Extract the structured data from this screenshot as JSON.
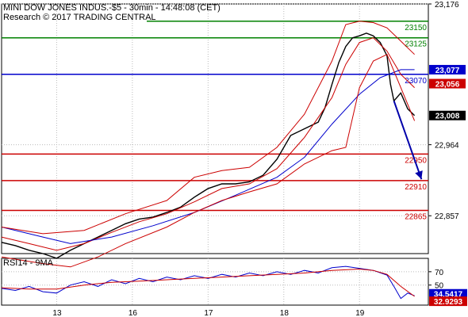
{
  "header": {
    "title": "MINI DOW JONES INDUS.-$5 - 30min - 14:48:08 (CET)",
    "subtitle": "Research © 2017 TRADING CENTRAL"
  },
  "chart_data": {
    "type": "line",
    "ylim": [
      22800,
      23176
    ],
    "y_ticks": [
      {
        "value": 23176,
        "label": "23,176"
      },
      {
        "value": 22964,
        "label": "22,964"
      },
      {
        "value": 22857,
        "label": "22,857"
      }
    ],
    "x_ticks": [
      {
        "t": 8,
        "label": "13"
      },
      {
        "t": 19,
        "label": "16"
      },
      {
        "t": 30,
        "label": "17"
      },
      {
        "t": 41,
        "label": "18"
      },
      {
        "t": 52,
        "label": "19"
      }
    ],
    "t_range": [
      0,
      62
    ],
    "levels": [
      {
        "name": "resistance-2",
        "value": 23150,
        "label": "23150",
        "color": "#008000"
      },
      {
        "name": "resistance-1",
        "value": 23125,
        "label": "23125",
        "color": "#008000"
      },
      {
        "name": "pivot",
        "value": 23070,
        "label": "23070",
        "color": "#0000cc"
      },
      {
        "name": "support-1",
        "value": 22950,
        "label": "22950",
        "color": "#cc0000"
      },
      {
        "name": "support-2",
        "value": 22910,
        "label": "22910",
        "color": "#cc0000"
      },
      {
        "name": "support-3",
        "value": 22865,
        "label": "22865",
        "color": "#cc0000"
      }
    ],
    "badges": [
      {
        "name": "blue-ma-badge",
        "value": 23077,
        "label": "23,077",
        "bg": "#0000cc",
        "fg": "#ffffff"
      },
      {
        "name": "red-ma-badge",
        "value": 23056,
        "label": "23,056",
        "bg": "#cc0000",
        "fg": "#ffffff"
      },
      {
        "name": "last-price-badge",
        "value": 23008,
        "label": "23,008",
        "bg": "#000000",
        "fg": "#ffffff"
      }
    ],
    "series": [
      {
        "name": "price",
        "color": "#000000",
        "values": [
          [
            0,
            22817
          ],
          [
            2,
            22812
          ],
          [
            4,
            22805
          ],
          [
            6,
            22800
          ],
          [
            8,
            22793
          ],
          [
            10,
            22805
          ],
          [
            12,
            22815
          ],
          [
            14,
            22825
          ],
          [
            16,
            22835
          ],
          [
            18,
            22845
          ],
          [
            20,
            22852
          ],
          [
            22,
            22855
          ],
          [
            24,
            22862
          ],
          [
            26,
            22870
          ],
          [
            28,
            22885
          ],
          [
            30,
            22898
          ],
          [
            32,
            22905
          ],
          [
            34,
            22905
          ],
          [
            36,
            22908
          ],
          [
            38,
            22918
          ],
          [
            40,
            22942
          ],
          [
            42,
            22978
          ],
          [
            44,
            22988
          ],
          [
            46,
            22998
          ],
          [
            47,
            23020
          ],
          [
            48,
            23055
          ],
          [
            49,
            23088
          ],
          [
            50,
            23112
          ],
          [
            51,
            23125
          ],
          [
            52,
            23128
          ],
          [
            53,
            23132
          ],
          [
            54,
            23128
          ],
          [
            55,
            23118
          ],
          [
            56,
            23098
          ],
          [
            56.5,
            23055
          ],
          [
            57,
            23030
          ],
          [
            58,
            23042
          ],
          [
            59,
            23018
          ],
          [
            60,
            23008
          ]
        ]
      },
      {
        "name": "fast-ma",
        "color": "#cc0000",
        "values": [
          [
            0,
            22825
          ],
          [
            4,
            22815
          ],
          [
            8,
            22805
          ],
          [
            12,
            22815
          ],
          [
            16,
            22832
          ],
          [
            20,
            22848
          ],
          [
            24,
            22860
          ],
          [
            28,
            22878
          ],
          [
            32,
            22898
          ],
          [
            36,
            22905
          ],
          [
            40,
            22928
          ],
          [
            44,
            22975
          ],
          [
            48,
            23035
          ],
          [
            50,
            23085
          ],
          [
            52,
            23118
          ],
          [
            54,
            23125
          ],
          [
            56,
            23105
          ],
          [
            58,
            23070
          ],
          [
            60,
            23050
          ]
        ]
      },
      {
        "name": "slow-ma",
        "color": "#0000cc",
        "values": [
          [
            0,
            22840
          ],
          [
            6,
            22825
          ],
          [
            10,
            22815
          ],
          [
            16,
            22825
          ],
          [
            22,
            22842
          ],
          [
            28,
            22862
          ],
          [
            34,
            22888
          ],
          [
            40,
            22915
          ],
          [
            44,
            22945
          ],
          [
            48,
            22995
          ],
          [
            52,
            23040
          ],
          [
            55,
            23065
          ],
          [
            58,
            23077
          ],
          [
            60,
            23077
          ]
        ]
      },
      {
        "name": "upper-band",
        "color": "#cc0000",
        "values": [
          [
            0,
            22840
          ],
          [
            6,
            22830
          ],
          [
            12,
            22835
          ],
          [
            18,
            22860
          ],
          [
            24,
            22880
          ],
          [
            28,
            22915
          ],
          [
            32,
            22925
          ],
          [
            36,
            22930
          ],
          [
            40,
            22960
          ],
          [
            44,
            23010
          ],
          [
            48,
            23090
          ],
          [
            50,
            23145
          ],
          [
            52,
            23150
          ],
          [
            54,
            23148
          ],
          [
            56,
            23140
          ],
          [
            58,
            23120
          ],
          [
            60,
            23100
          ]
        ]
      },
      {
        "name": "lower-band",
        "color": "#cc0000",
        "values": [
          [
            0,
            22795
          ],
          [
            6,
            22785
          ],
          [
            10,
            22780
          ],
          [
            14,
            22795
          ],
          [
            18,
            22815
          ],
          [
            24,
            22840
          ],
          [
            28,
            22862
          ],
          [
            32,
            22880
          ],
          [
            36,
            22893
          ],
          [
            40,
            22905
          ],
          [
            44,
            22935
          ],
          [
            48,
            22955
          ],
          [
            50,
            22960
          ],
          [
            52,
            23050
          ],
          [
            54,
            23090
          ],
          [
            56,
            23100
          ],
          [
            58,
            23050
          ],
          [
            60,
            23000
          ]
        ]
      }
    ],
    "rsi": {
      "title": "RSI14 - 9MA",
      "ylim": [
        20,
        90
      ],
      "y_ticks": [
        {
          "value": 70,
          "label": "70"
        },
        {
          "value": 50,
          "label": "50"
        }
      ],
      "badges": [
        {
          "name": "rsi-badge",
          "value": 34.5417,
          "label": "34.5417",
          "bg": "#0000cc",
          "fg": "#ffffff"
        },
        {
          "name": "rsi-ma-badge",
          "value": 32.9293,
          "label": "32.9293",
          "bg": "#cc0000",
          "fg": "#ffffff"
        }
      ],
      "series": [
        {
          "name": "rsi",
          "color": "#0000cc",
          "values": [
            [
              0,
              45
            ],
            [
              2,
              42
            ],
            [
              4,
              48
            ],
            [
              6,
              40
            ],
            [
              8,
              38
            ],
            [
              10,
              50
            ],
            [
              12,
              55
            ],
            [
              14,
              48
            ],
            [
              16,
              58
            ],
            [
              18,
              52
            ],
            [
              20,
              60
            ],
            [
              22,
              55
            ],
            [
              24,
              62
            ],
            [
              26,
              58
            ],
            [
              28,
              64
            ],
            [
              30,
              60
            ],
            [
              32,
              66
            ],
            [
              34,
              62
            ],
            [
              36,
              68
            ],
            [
              38,
              64
            ],
            [
              40,
              70
            ],
            [
              42,
              66
            ],
            [
              44,
              72
            ],
            [
              46,
              68
            ],
            [
              48,
              76
            ],
            [
              50,
              78
            ],
            [
              52,
              75
            ],
            [
              54,
              72
            ],
            [
              56,
              65
            ],
            [
              57,
              48
            ],
            [
              58,
              30
            ],
            [
              59,
              38
            ],
            [
              60,
              34
            ]
          ]
        },
        {
          "name": "rsi-ma",
          "color": "#cc0000",
          "values": [
            [
              0,
              46
            ],
            [
              4,
              44
            ],
            [
              8,
              44
            ],
            [
              12,
              50
            ],
            [
              16,
              54
            ],
            [
              20,
              56
            ],
            [
              24,
              58
            ],
            [
              28,
              60
            ],
            [
              32,
              62
            ],
            [
              36,
              64
            ],
            [
              40,
              66
            ],
            [
              44,
              68
            ],
            [
              48,
              72
            ],
            [
              52,
              74
            ],
            [
              54,
              72
            ],
            [
              56,
              66
            ],
            [
              58,
              48
            ],
            [
              60,
              33
            ]
          ]
        }
      ]
    },
    "arrow": {
      "from": [
        57,
        23030
      ],
      "to": [
        61,
        22912
      ],
      "color": "#0000aa"
    }
  }
}
